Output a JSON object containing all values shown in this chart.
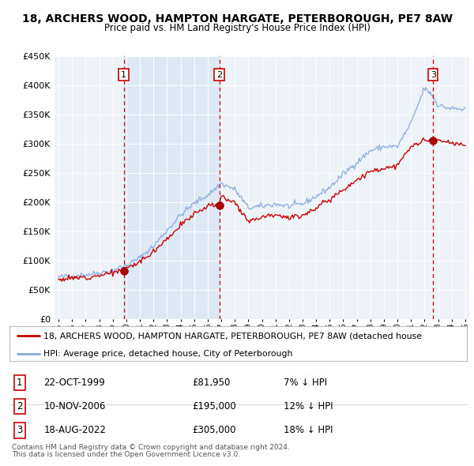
{
  "title": "18, ARCHERS WOOD, HAMPTON HARGATE, PETERBOROUGH, PE7 8AW",
  "subtitle": "Price paid vs. HM Land Registry's House Price Index (HPI)",
  "ylim": [
    0,
    450000
  ],
  "yticks": [
    0,
    50000,
    100000,
    150000,
    200000,
    250000,
    300000,
    350000,
    400000,
    450000
  ],
  "ytick_labels": [
    "£0",
    "£50K",
    "£100K",
    "£150K",
    "£200K",
    "£250K",
    "£300K",
    "£350K",
    "£400K",
    "£450K"
  ],
  "line_color_property": "#cc0000",
  "line_color_hpi": "#88aadd",
  "shade_color": "#dde8f5",
  "background_color": "#eef3fa",
  "grid_color": "#ffffff",
  "sales": [
    {
      "num": 1,
      "year": 1999.81,
      "price": 81950,
      "date": "22-OCT-1999",
      "pct": "7%",
      "direction": "↓"
    },
    {
      "num": 2,
      "year": 2006.87,
      "price": 195000,
      "date": "10-NOV-2006",
      "pct": "12%",
      "direction": "↓"
    },
    {
      "num": 3,
      "year": 2022.63,
      "price": 305000,
      "date": "18-AUG-2022",
      "pct": "18%",
      "direction": "↓"
    }
  ],
  "legend_property": "18, ARCHERS WOOD, HAMPTON HARGATE, PETERBOROUGH, PE7 8AW (detached house",
  "legend_hpi": "HPI: Average price, detached house, City of Peterborough",
  "footer1": "Contains HM Land Registry data © Crown copyright and database right 2024.",
  "footer2": "This data is licensed under the Open Government Licence v3.0."
}
